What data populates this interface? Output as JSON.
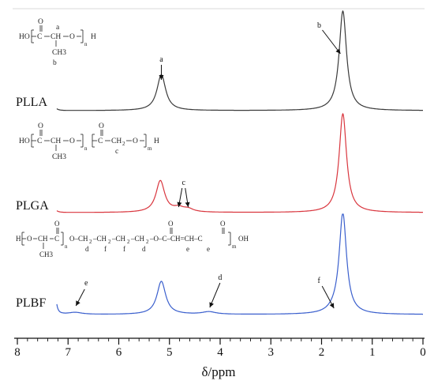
{
  "chart_data": {
    "type": "line",
    "xlabel": "δ/ppm",
    "xlim": [
      8,
      0
    ],
    "x_ticks": [
      "8",
      "7",
      "6",
      "5",
      "4",
      "3",
      "2",
      "1",
      "0"
    ],
    "series": [
      {
        "name": "PLLA",
        "color": "#3a3a3a",
        "peaks": [
          {
            "x": 7.26,
            "height": 0.03,
            "width": 0.006
          },
          {
            "x": 5.16,
            "height": 0.36,
            "width": 0.013
          },
          {
            "x": 1.58,
            "height": 1.0,
            "width": 0.011
          }
        ],
        "annotations": [
          {
            "label": "a",
            "x": 5.16
          },
          {
            "label": "b",
            "x": 1.58
          }
        ]
      },
      {
        "name": "PLGA",
        "color": "#d9363e",
        "peaks": [
          {
            "x": 7.26,
            "height": 0.03,
            "width": 0.006
          },
          {
            "x": 5.18,
            "height": 0.32,
            "width": 0.013
          },
          {
            "x": 4.82,
            "height": 0.04,
            "width": 0.015
          },
          {
            "x": 4.63,
            "height": 0.03,
            "width": 0.015
          },
          {
            "x": 1.58,
            "height": 1.0,
            "width": 0.011
          }
        ],
        "annotations": [
          {
            "label": "c",
            "x": 4.72
          }
        ]
      },
      {
        "name": "PLBF",
        "color": "#3a5fcd",
        "peaks": [
          {
            "x": 7.26,
            "height": 0.24,
            "width": 0.004
          },
          {
            "x": 6.86,
            "height": 0.02,
            "width": 0.02
          },
          {
            "x": 5.16,
            "height": 0.33,
            "width": 0.013
          },
          {
            "x": 4.22,
            "height": 0.025,
            "width": 0.02
          },
          {
            "x": 1.74,
            "height": 0.025,
            "width": 0.02
          },
          {
            "x": 1.58,
            "height": 1.0,
            "width": 0.011
          }
        ],
        "annotations": [
          {
            "label": "e",
            "x": 6.86
          },
          {
            "label": "d",
            "x": 4.22
          },
          {
            "label": "f",
            "x": 1.74
          }
        ]
      }
    ]
  },
  "structures": {
    "plla": {
      "main": "HO[C–CH–O]nH",
      "label_a": "a",
      "label_b": "b",
      "carbonyl_o": "O",
      "methyl": "CH3",
      "n": "n"
    },
    "plga": {
      "main": "HO[C–CH–O]n[C–CH2–O]mH",
      "label_c": "c",
      "carbonyl_o": "O",
      "methyl": "CH3",
      "n": "n",
      "m": "m"
    },
    "plbf": {
      "main": "H[O–CH–C]nO–CH2–CH2–CH2–CH2–O–C–CH=CH–C]mOH",
      "labels_d": "d",
      "labels_f": "f",
      "labels_e": "e",
      "carbonyl_o": "O",
      "methyl": "CH3",
      "n": "n",
      "m": "m"
    }
  }
}
